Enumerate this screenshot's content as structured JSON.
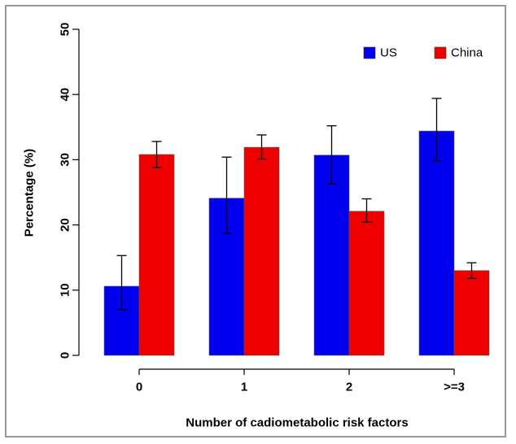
{
  "chart_data": {
    "type": "bar",
    "title": "",
    "xlabel": "Number of cadiometabolic risk factors",
    "ylabel": "Percentage (%)",
    "categories": [
      "0",
      "1",
      "2",
      ">=3"
    ],
    "ylim": [
      0,
      50
    ],
    "yticks": [
      "0",
      "10",
      "20",
      "30",
      "40",
      "50"
    ],
    "legend_position": "top-right",
    "grid": false,
    "series": [
      {
        "name": "US",
        "color": "#0000ee",
        "values": [
          10.6,
          24.1,
          30.7,
          34.4
        ],
        "err_low": [
          7.0,
          18.7,
          26.3,
          29.8
        ],
        "err_high": [
          15.3,
          30.4,
          35.2,
          39.4
        ]
      },
      {
        "name": "China",
        "color": "#ee0000",
        "values": [
          30.8,
          31.9,
          22.1,
          13.0
        ],
        "err_low": [
          28.8,
          30.1,
          20.4,
          11.8
        ],
        "err_high": [
          32.8,
          33.8,
          24.0,
          14.2
        ]
      }
    ]
  }
}
